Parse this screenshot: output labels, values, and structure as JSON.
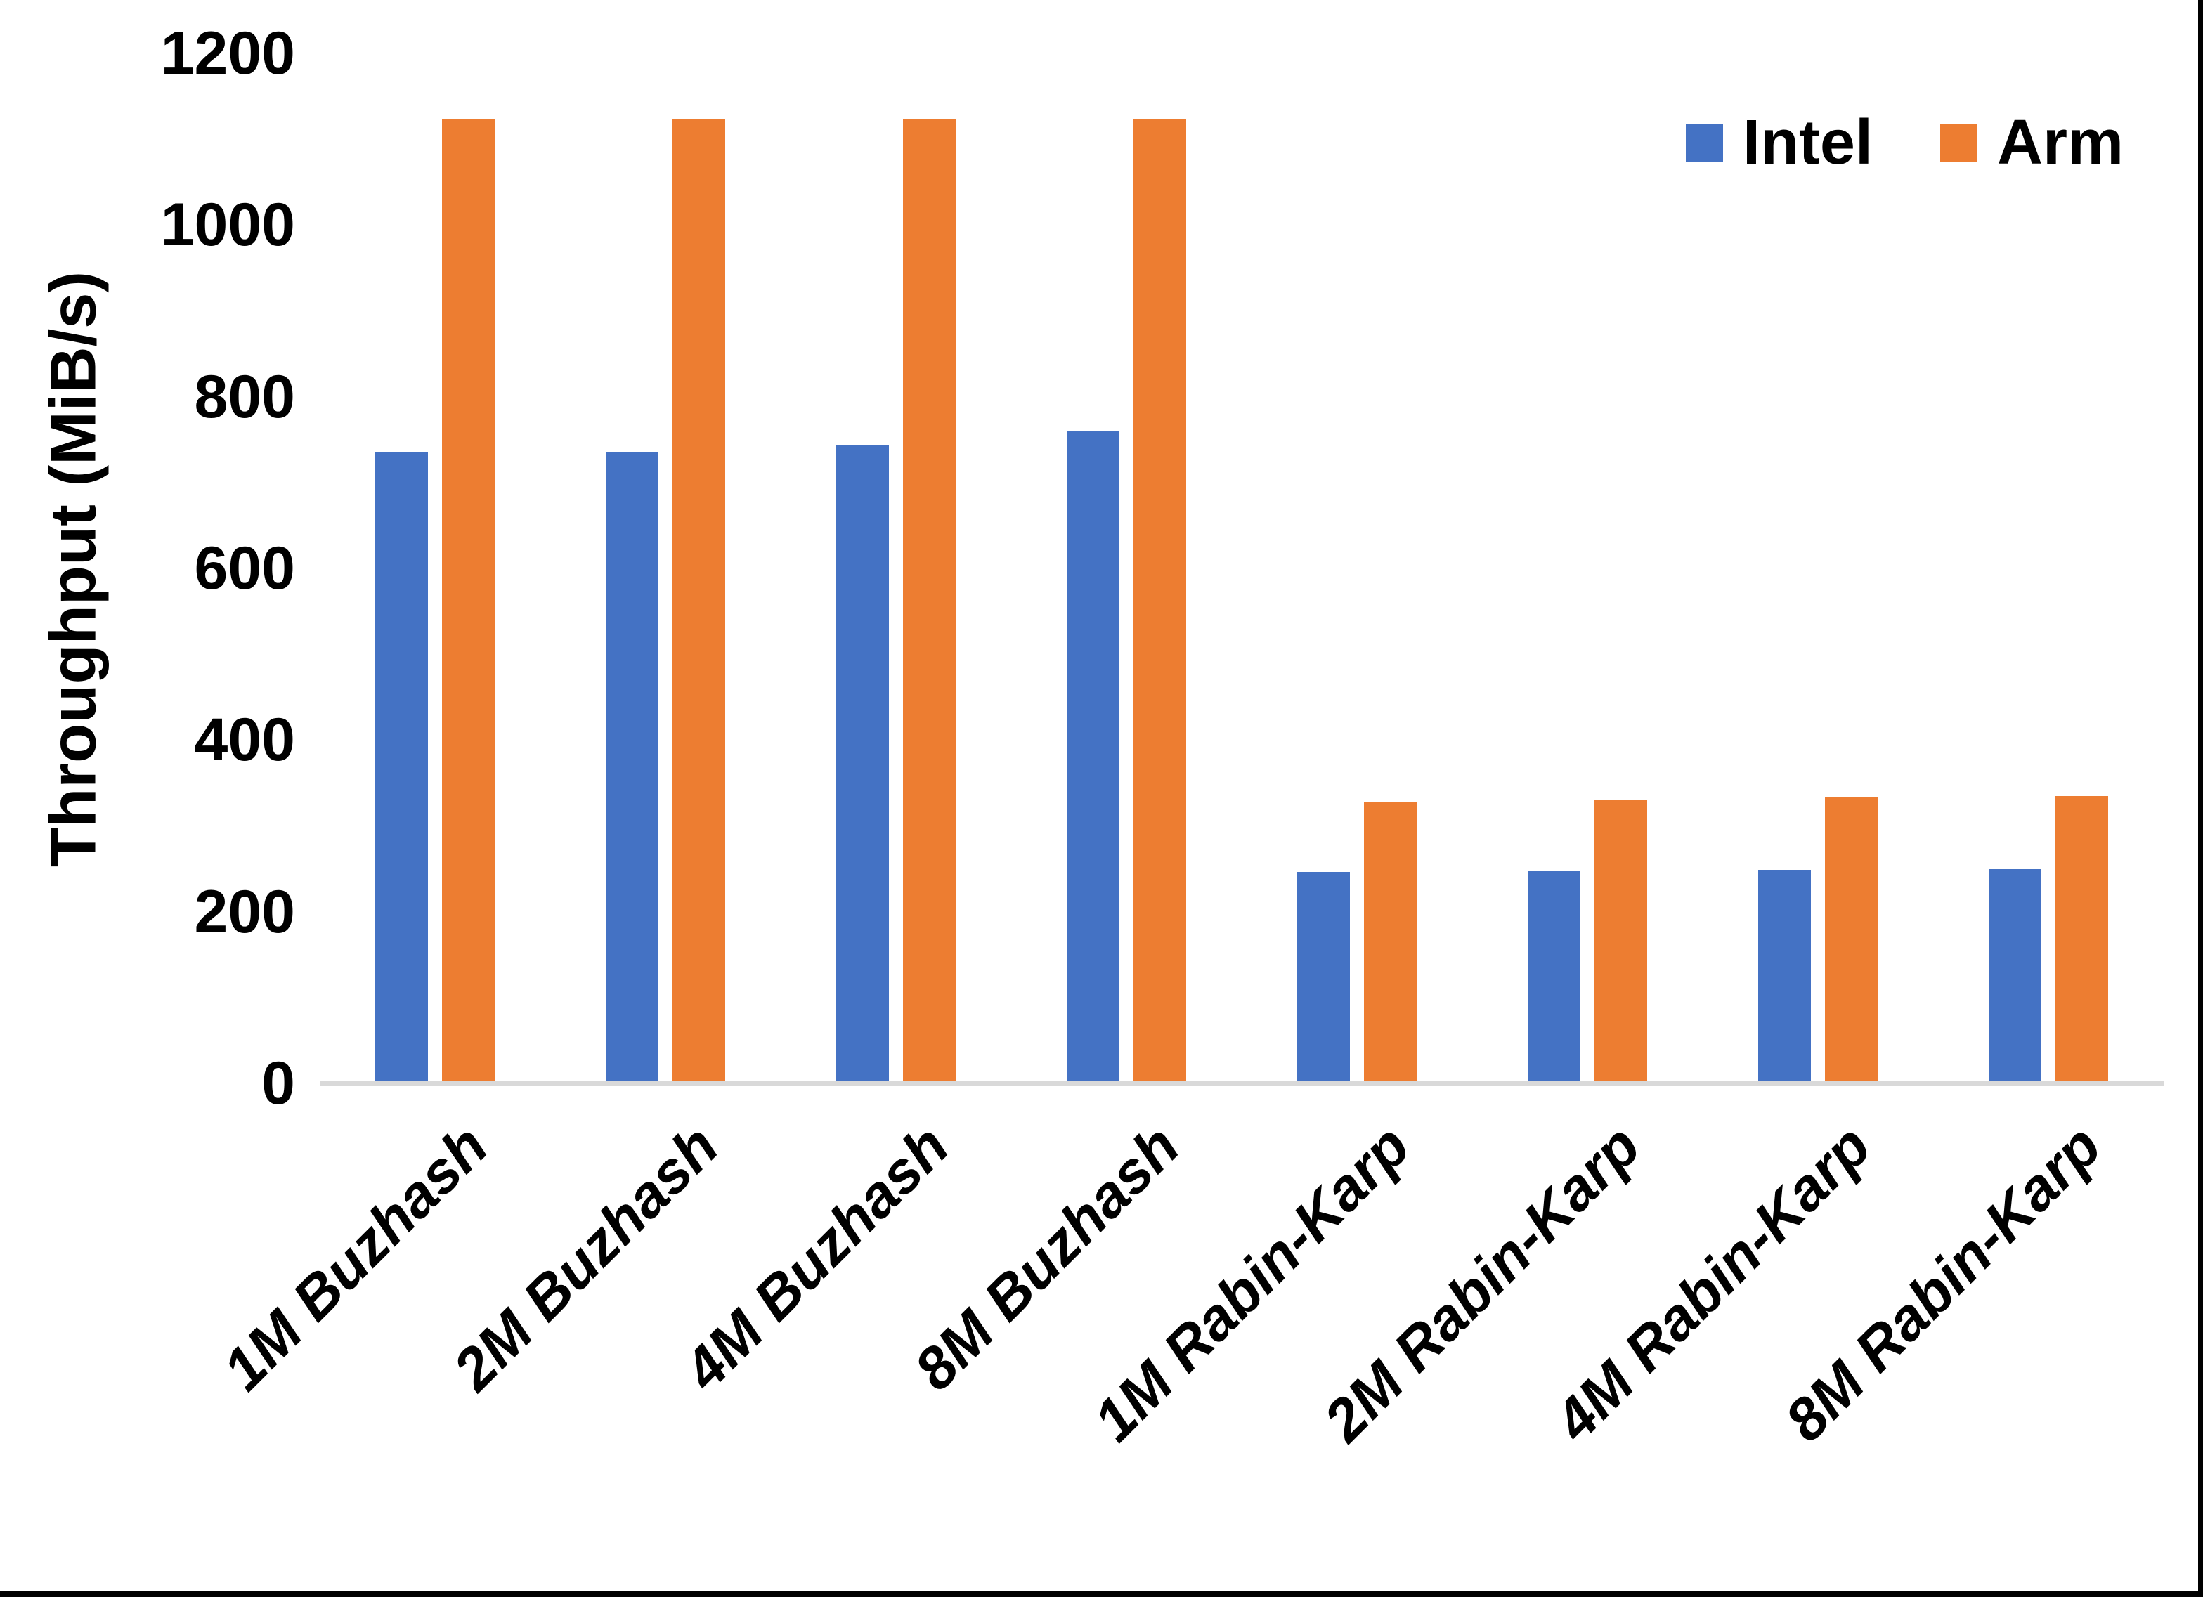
{
  "chart_data": {
    "type": "bar",
    "title": "",
    "categories": [
      "1M Buzhash",
      "2M Buzhash",
      "4M Buzhash",
      "8M Buzhash",
      "1M Rabin-Karp",
      "2M Rabin-Karp",
      "4M Rabin-Karp",
      "8M Rabin-Karp"
    ],
    "series": [
      {
        "name": "Intel",
        "color": "#4472C4",
        "values": [
          736,
          735,
          744,
          760,
          246,
          247,
          249,
          250
        ]
      },
      {
        "name": "Arm",
        "color": "#ED7D31",
        "values": [
          1124,
          1124,
          1124,
          1124,
          328,
          331,
          333,
          335
        ]
      }
    ],
    "xlabel": "",
    "ylabel": "Throughput (MiB/s)",
    "ylim": [
      0,
      1200
    ],
    "ytick_step": 200,
    "yticks": [
      0,
      200,
      400,
      600,
      800,
      1000,
      1200
    ],
    "grid": false,
    "legend_position": "top-right",
    "axis_line_color": "#D9D9D9",
    "text_color": "#000000",
    "background_color": "#FFFFFF",
    "border_color": "#000000"
  },
  "legend": {
    "intel_label": "Intel",
    "arm_label": "Arm"
  },
  "y_axis": {
    "title": "Throughput (MiB/s)"
  }
}
